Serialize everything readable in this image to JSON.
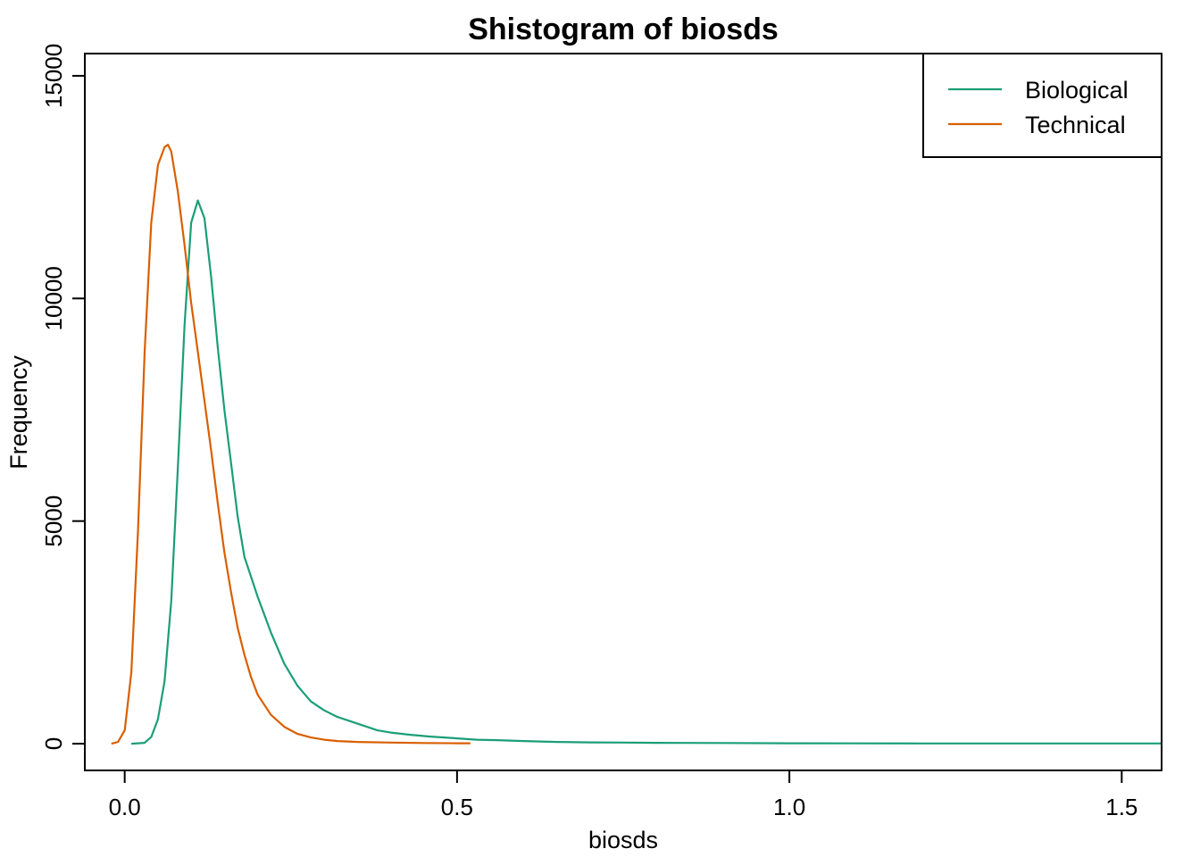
{
  "chart_data": {
    "type": "line",
    "title": "Shistogram of biosds",
    "xlabel": "biosds",
    "ylabel": "Frequency",
    "xlim": [
      -0.06,
      1.56
    ],
    "ylim": [
      -600,
      15500
    ],
    "x_ticks": [
      0.0,
      0.5,
      1.0,
      1.5
    ],
    "x_tick_labels": [
      "0.0",
      "0.5",
      "1.0",
      "1.5"
    ],
    "y_ticks": [
      0,
      5000,
      10000,
      15000
    ],
    "y_tick_labels": [
      "0",
      "5000",
      "10000",
      "15000"
    ],
    "grid": false,
    "legend": {
      "position": "top-right",
      "entries": [
        "Biological",
        "Technical"
      ]
    },
    "series": [
      {
        "name": "Biological",
        "color": "#1b9e77",
        "x": [
          0.01,
          0.03,
          0.04,
          0.05,
          0.06,
          0.07,
          0.08,
          0.09,
          0.1,
          0.11,
          0.12,
          0.13,
          0.135,
          0.14,
          0.15,
          0.16,
          0.17,
          0.18,
          0.2,
          0.22,
          0.24,
          0.26,
          0.28,
          0.3,
          0.32,
          0.34,
          0.36,
          0.38,
          0.4,
          0.43,
          0.46,
          0.5,
          0.53,
          0.56,
          0.6,
          0.65,
          0.7,
          0.75,
          0.8,
          0.9,
          1.0,
          1.1,
          1.2,
          1.3,
          1.4,
          1.5,
          1.56
        ],
        "y": [
          0,
          20,
          150,
          550,
          1400,
          3200,
          6200,
          9400,
          11700,
          12200,
          11800,
          10500,
          9700,
          8900,
          7500,
          6300,
          5100,
          4200,
          3300,
          2500,
          1800,
          1300,
          950,
          750,
          600,
          500,
          400,
          300,
          250,
          200,
          160,
          120,
          90,
          80,
          60,
          40,
          30,
          25,
          20,
          15,
          10,
          8,
          5,
          5,
          5,
          5,
          5
        ]
      },
      {
        "name": "Technical",
        "color": "#d95f02",
        "x": [
          -0.02,
          -0.01,
          0.0,
          0.01,
          0.02,
          0.03,
          0.04,
          0.05,
          0.06,
          0.065,
          0.07,
          0.08,
          0.09,
          0.1,
          0.11,
          0.12,
          0.13,
          0.14,
          0.15,
          0.16,
          0.17,
          0.18,
          0.19,
          0.2,
          0.22,
          0.24,
          0.26,
          0.28,
          0.3,
          0.32,
          0.35,
          0.4,
          0.45,
          0.5,
          0.52
        ],
        "y": [
          0,
          40,
          300,
          1600,
          4800,
          8800,
          11700,
          13000,
          13400,
          13450,
          13300,
          12400,
          11200,
          9900,
          8800,
          7700,
          6600,
          5400,
          4300,
          3400,
          2600,
          2000,
          1500,
          1100,
          650,
          380,
          220,
          140,
          90,
          60,
          40,
          25,
          15,
          10,
          10
        ]
      }
    ]
  }
}
